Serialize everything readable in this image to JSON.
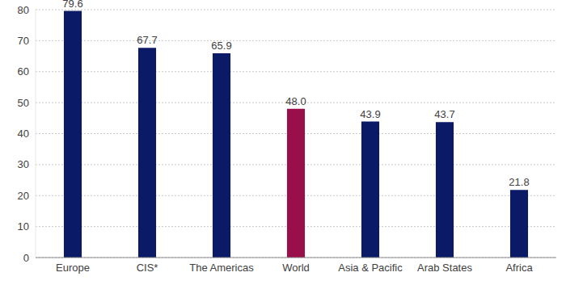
{
  "chart_data": {
    "type": "bar",
    "categories": [
      "Europe",
      "CIS*",
      "The Americas",
      "World",
      "Asia & Pacific",
      "Arab States",
      "Africa"
    ],
    "values": [
      79.6,
      67.7,
      65.9,
      48.0,
      43.9,
      43.7,
      21.8
    ],
    "colors": [
      "#0b1a66",
      "#0b1a66",
      "#0b1a66",
      "#990f4a",
      "#0b1a66",
      "#0b1a66",
      "#0b1a66"
    ],
    "ylim": [
      0,
      80
    ],
    "yticks": [
      0,
      10,
      20,
      30,
      40,
      50,
      60,
      70,
      80
    ],
    "grid": true,
    "data_labels": true
  }
}
